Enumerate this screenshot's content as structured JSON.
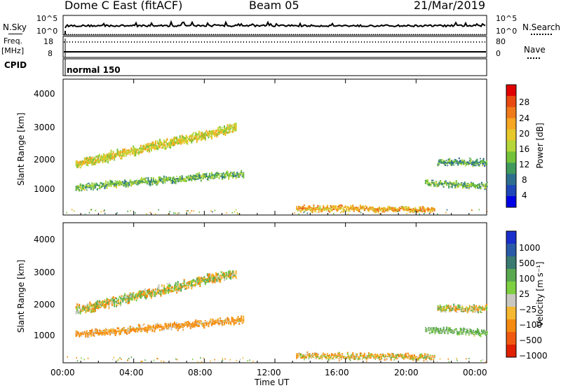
{
  "header": {
    "station": "Dome C East (fitACF)",
    "beam": "Beam 05",
    "date": "21/Mar/2019"
  },
  "noise_panel": {
    "left_label": "N.Sky",
    "right_label": "N.Search",
    "left_ticks": [
      "10^5",
      "10^0"
    ],
    "right_ticks": [
      "10^5",
      "10^0"
    ]
  },
  "freq_panel": {
    "left_label_1": "Freq.",
    "left_label_2": "[MHz]",
    "right_label": "Nave",
    "left_ticks": [
      "18",
      "8"
    ],
    "right_ticks": [
      "80",
      "0"
    ]
  },
  "cpid_panel": {
    "label": "CPID",
    "mode": "normal 150"
  },
  "axes": {
    "ylabel": "Slant Range [km]",
    "xlabel": "Time UT",
    "yticks": [
      "4000",
      "3000",
      "2000",
      "1000"
    ],
    "xticks": [
      "00:00",
      "04:00",
      "08:00",
      "12:00",
      "16:00",
      "20:00",
      "00:00"
    ]
  },
  "power_colorbar": {
    "label": "Power [dB]",
    "ticks": [
      "28",
      "24",
      "20",
      "16",
      "12",
      "8",
      "4"
    ],
    "colors": [
      "#0000e6",
      "#2047b8",
      "#2e6f8f",
      "#3f9a5c",
      "#74c23a",
      "#b4d63a",
      "#e6c82a",
      "#f5a623",
      "#f07a1a",
      "#e84a10",
      "#e00000"
    ]
  },
  "velocity_colorbar": {
    "label": "Velocity [m s⁻¹]",
    "ticks": [
      "1000",
      "500",
      "100",
      "25",
      "−25",
      "−100",
      "−500",
      "−1000"
    ],
    "colors": [
      "#1a2fcc",
      "#2a5aa8",
      "#3a7a70",
      "#5aa850",
      "#7fd040",
      "#c8c8c0",
      "#f5b830",
      "#f58a10",
      "#f05a10",
      "#e02000"
    ]
  },
  "chart_data": [
    {
      "type": "heatmap",
      "title": "Power",
      "x_unit": "hours UT",
      "y_unit": "km",
      "xlim": [
        0,
        24
      ],
      "ylim": [
        180,
        4500
      ],
      "echo_bands": [
        {
          "t0": 0.7,
          "t1": 9.8,
          "r_start": 1800,
          "r_end": 2950,
          "width": 260,
          "value": 18
        },
        {
          "t0": 0.7,
          "t1": 10.2,
          "r_start": 1050,
          "r_end": 1500,
          "width": 180,
          "value": 12
        },
        {
          "t0": 13.2,
          "t1": 21.0,
          "r_start": 400,
          "r_end": 350,
          "width": 140,
          "value": 22
        },
        {
          "t0": 21.2,
          "t1": 24.0,
          "r_start": 1850,
          "r_end": 1850,
          "width": 180,
          "value": 10
        },
        {
          "t0": 20.5,
          "t1": 24.0,
          "r_start": 1200,
          "r_end": 1100,
          "width": 150,
          "value": 12
        }
      ]
    },
    {
      "type": "heatmap",
      "title": "Velocity",
      "x_unit": "hours UT",
      "y_unit": "km",
      "xlim": [
        0,
        24
      ],
      "ylim": [
        180,
        4500
      ],
      "echo_bands": [
        {
          "t0": 0.7,
          "t1": 9.8,
          "r_start": 1800,
          "r_end": 2950,
          "width": 260,
          "value": 0
        },
        {
          "t0": 0.7,
          "t1": 10.2,
          "r_start": 1050,
          "r_end": 1500,
          "width": 180,
          "value": -150
        },
        {
          "t0": 13.2,
          "t1": 21.0,
          "r_start": 400,
          "r_end": 350,
          "width": 140,
          "value": -60
        },
        {
          "t0": 21.2,
          "t1": 24.0,
          "r_start": 1850,
          "r_end": 1850,
          "width": 180,
          "value": 0
        },
        {
          "t0": 20.5,
          "t1": 24.0,
          "r_start": 1200,
          "r_end": 1100,
          "width": 150,
          "value": 150
        }
      ]
    }
  ]
}
